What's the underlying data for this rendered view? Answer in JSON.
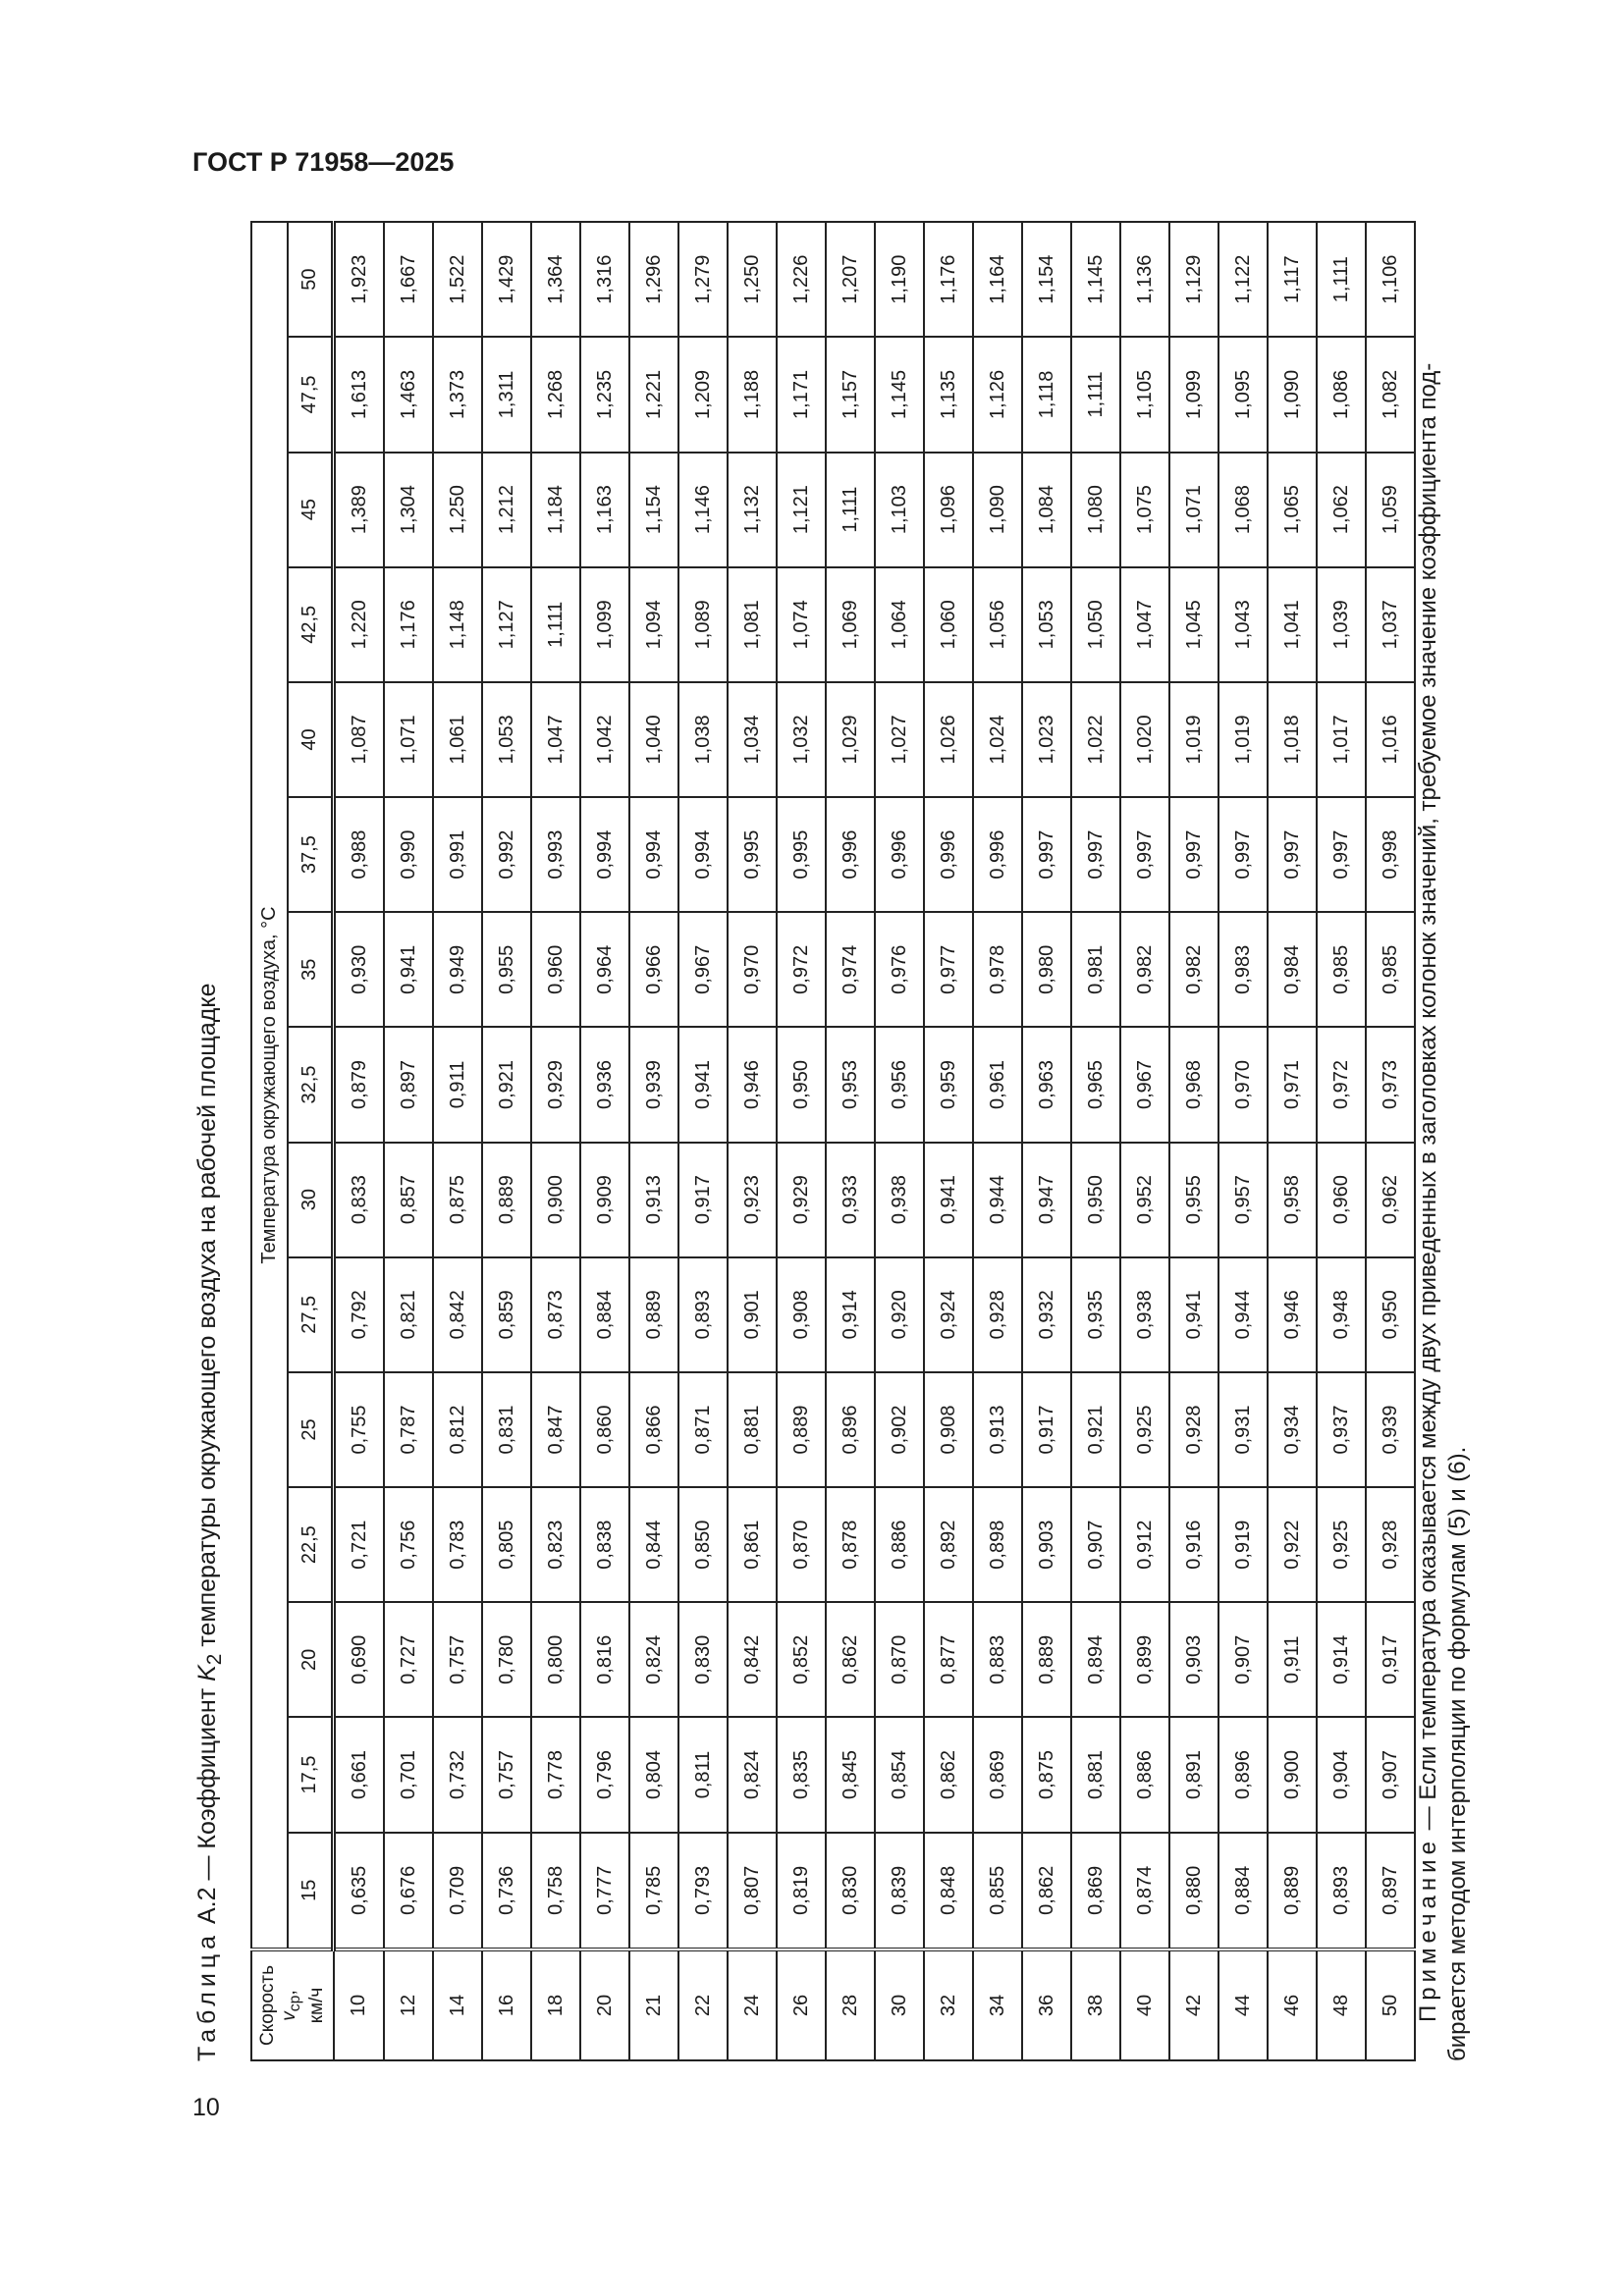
{
  "header": {
    "doc_code": "ГОСТ Р 71958—2025",
    "page_number": "10"
  },
  "caption": {
    "prefix": "Таблица",
    "text": "А.2 — Коэффициент ",
    "var": "K",
    "sub": "2",
    "rest": " температуры окружающего воздуха на рабочей площадке"
  },
  "table": {
    "speed_header": {
      "label": "Скорость ",
      "var": "v",
      "sub": "ср",
      "comma": ",",
      "unit": "км/ч"
    },
    "group_header": "Температура окружающего воздуха, °С",
    "temperatures": [
      "15",
      "17,5",
      "20",
      "22,5",
      "25",
      "27,5",
      "30",
      "32,5",
      "35",
      "37,5",
      "40",
      "42,5",
      "45",
      "47,5",
      "50"
    ],
    "rows": [
      {
        "speed": "10",
        "values": [
          "0,635",
          "0,661",
          "0,690",
          "0,721",
          "0,755",
          "0,792",
          "0,833",
          "0,879",
          "0,930",
          "0,988",
          "1,087",
          "1,220",
          "1,389",
          "1,613",
          "1,923"
        ]
      },
      {
        "speed": "12",
        "values": [
          "0,676",
          "0,701",
          "0,727",
          "0,756",
          "0,787",
          "0,821",
          "0,857",
          "0,897",
          "0,941",
          "0,990",
          "1,071",
          "1,176",
          "1,304",
          "1,463",
          "1,667"
        ]
      },
      {
        "speed": "14",
        "values": [
          "0,709",
          "0,732",
          "0,757",
          "0,783",
          "0,812",
          "0,842",
          "0,875",
          "0,911",
          "0,949",
          "0,991",
          "1,061",
          "1,148",
          "1,250",
          "1,373",
          "1,522"
        ]
      },
      {
        "speed": "16",
        "values": [
          "0,736",
          "0,757",
          "0,780",
          "0,805",
          "0,831",
          "0,859",
          "0,889",
          "0,921",
          "0,955",
          "0,992",
          "1,053",
          "1,127",
          "1,212",
          "1,311",
          "1,429"
        ]
      },
      {
        "speed": "18",
        "values": [
          "0,758",
          "0,778",
          "0,800",
          "0,823",
          "0,847",
          "0,873",
          "0,900",
          "0,929",
          "0,960",
          "0,993",
          "1,047",
          "1,111",
          "1,184",
          "1,268",
          "1,364"
        ]
      },
      {
        "speed": "20",
        "values": [
          "0,777",
          "0,796",
          "0,816",
          "0,838",
          "0,860",
          "0,884",
          "0,909",
          "0,936",
          "0,964",
          "0,994",
          "1,042",
          "1,099",
          "1,163",
          "1,235",
          "1,316"
        ]
      },
      {
        "speed": "21",
        "values": [
          "0,785",
          "0,804",
          "0,824",
          "0,844",
          "0,866",
          "0,889",
          "0,913",
          "0,939",
          "0,966",
          "0,994",
          "1,040",
          "1,094",
          "1,154",
          "1,221",
          "1,296"
        ]
      },
      {
        "speed": "22",
        "values": [
          "0,793",
          "0,811",
          "0,830",
          "0,850",
          "0,871",
          "0,893",
          "0,917",
          "0,941",
          "0,967",
          "0,994",
          "1,038",
          "1,089",
          "1,146",
          "1,209",
          "1,279"
        ]
      },
      {
        "speed": "24",
        "values": [
          "0,807",
          "0,824",
          "0,842",
          "0,861",
          "0,881",
          "0,901",
          "0,923",
          "0,946",
          "0,970",
          "0,995",
          "1,034",
          "1,081",
          "1,132",
          "1,188",
          "1,250"
        ]
      },
      {
        "speed": "26",
        "values": [
          "0,819",
          "0,835",
          "0,852",
          "0,870",
          "0,889",
          "0,908",
          "0,929",
          "0,950",
          "0,972",
          "0,995",
          "1,032",
          "1,074",
          "1,121",
          "1,171",
          "1,226"
        ]
      },
      {
        "speed": "28",
        "values": [
          "0,830",
          "0,845",
          "0,862",
          "0,878",
          "0,896",
          "0,914",
          "0,933",
          "0,953",
          "0,974",
          "0,996",
          "1,029",
          "1,069",
          "1,111",
          "1,157",
          "1,207"
        ]
      },
      {
        "speed": "30",
        "values": [
          "0,839",
          "0,854",
          "0,870",
          "0,886",
          "0,902",
          "0,920",
          "0,938",
          "0,956",
          "0,976",
          "0,996",
          "1,027",
          "1,064",
          "1,103",
          "1,145",
          "1,190"
        ]
      },
      {
        "speed": "32",
        "values": [
          "0,848",
          "0,862",
          "0,877",
          "0,892",
          "0,908",
          "0,924",
          "0,941",
          "0,959",
          "0,977",
          "0,996",
          "1,026",
          "1,060",
          "1,096",
          "1,135",
          "1,176"
        ]
      },
      {
        "speed": "34",
        "values": [
          "0,855",
          "0,869",
          "0,883",
          "0,898",
          "0,913",
          "0,928",
          "0,944",
          "0,961",
          "0,978",
          "0,996",
          "1,024",
          "1,056",
          "1,090",
          "1,126",
          "1,164"
        ]
      },
      {
        "speed": "36",
        "values": [
          "0,862",
          "0,875",
          "0,889",
          "0,903",
          "0,917",
          "0,932",
          "0,947",
          "0,963",
          "0,980",
          "0,997",
          "1,023",
          "1,053",
          "1,084",
          "1,118",
          "1,154"
        ]
      },
      {
        "speed": "38",
        "values": [
          "0,869",
          "0,881",
          "0,894",
          "0,907",
          "0,921",
          "0,935",
          "0,950",
          "0,965",
          "0,981",
          "0,997",
          "1,022",
          "1,050",
          "1,080",
          "1,111",
          "1,145"
        ]
      },
      {
        "speed": "40",
        "values": [
          "0,874",
          "0,886",
          "0,899",
          "0,912",
          "0,925",
          "0,938",
          "0,952",
          "0,967",
          "0,982",
          "0,997",
          "1,020",
          "1,047",
          "1,075",
          "1,105",
          "1,136"
        ]
      },
      {
        "speed": "42",
        "values": [
          "0,880",
          "0,891",
          "0,903",
          "0,916",
          "0,928",
          "0,941",
          "0,955",
          "0,968",
          "0,982",
          "0,997",
          "1,019",
          "1,045",
          "1,071",
          "1,099",
          "1,129"
        ]
      },
      {
        "speed": "44",
        "values": [
          "0,884",
          "0,896",
          "0,907",
          "0,919",
          "0,931",
          "0,944",
          "0,957",
          "0,970",
          "0,983",
          "0,997",
          "1,019",
          "1,043",
          "1,068",
          "1,095",
          "1,122"
        ]
      },
      {
        "speed": "46",
        "values": [
          "0,889",
          "0,900",
          "0,911",
          "0,922",
          "0,934",
          "0,946",
          "0,958",
          "0,971",
          "0,984",
          "0,997",
          "1,018",
          "1,041",
          "1,065",
          "1,090",
          "1,117"
        ]
      },
      {
        "speed": "48",
        "values": [
          "0,893",
          "0,904",
          "0,914",
          "0,925",
          "0,937",
          "0,948",
          "0,960",
          "0,972",
          "0,985",
          "0,997",
          "1,017",
          "1,039",
          "1,062",
          "1,086",
          "1,111"
        ]
      },
      {
        "speed": "50",
        "values": [
          "0,897",
          "0,907",
          "0,917",
          "0,928",
          "0,939",
          "0,950",
          "0,962",
          "0,973",
          "0,985",
          "0,998",
          "1,016",
          "1,037",
          "1,059",
          "1,082",
          "1,106"
        ]
      }
    ]
  },
  "note": {
    "label": "Примечание",
    "line1": " — Если температура оказывается между двух приведенных в заголовках колонок значений, требуемое значение коэффициента под-",
    "line2": "бирается методом интерполяции по формулам (5) и (6)."
  }
}
